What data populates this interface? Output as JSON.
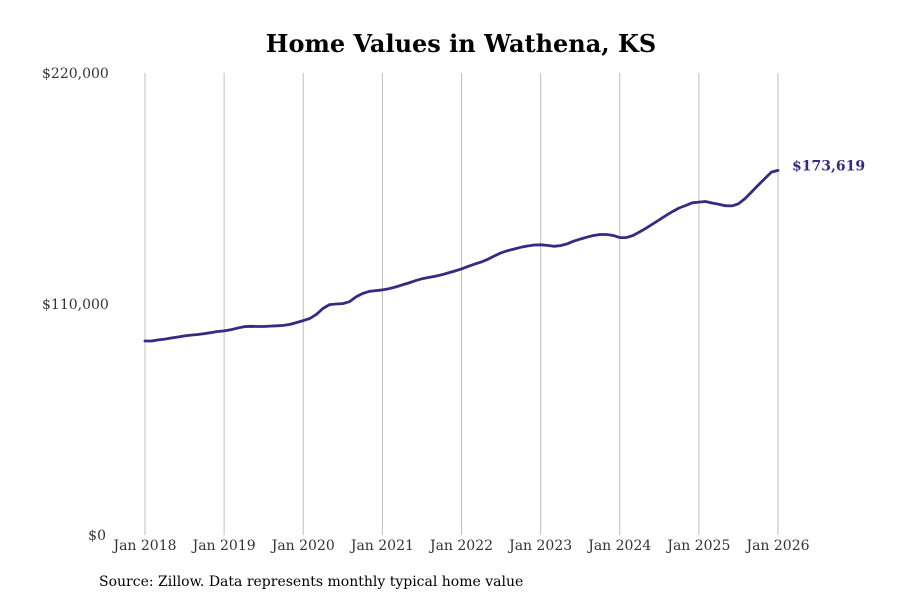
{
  "chart_data": {
    "type": "line",
    "title": "Home Values in Wathena, KS",
    "xlabel": "",
    "ylabel": "",
    "ylim": [
      0,
      220000
    ],
    "y_ticks": [
      0,
      110000,
      220000
    ],
    "y_tick_labels": [
      "$0",
      "$110,000",
      "$220,000"
    ],
    "x_tick_labels": [
      "Jan 2018",
      "Jan 2019",
      "Jan 2020",
      "Jan 2021",
      "Jan 2022",
      "Jan 2023",
      "Jan 2024",
      "Jan 2025",
      "Jan 2026"
    ],
    "xlim": [
      2018.0,
      2026.0
    ],
    "grid": "vertical",
    "series": [
      {
        "name": "Typical home value",
        "color": "#352b82",
        "x": [
          2018.0,
          2018.083,
          2018.167,
          2018.25,
          2018.333,
          2018.417,
          2018.5,
          2018.583,
          2018.667,
          2018.75,
          2018.833,
          2018.917,
          2019.0,
          2019.083,
          2019.167,
          2019.25,
          2019.333,
          2019.417,
          2019.5,
          2019.583,
          2019.667,
          2019.75,
          2019.833,
          2019.917,
          2020.0,
          2020.083,
          2020.167,
          2020.25,
          2020.333,
          2020.417,
          2020.5,
          2020.583,
          2020.667,
          2020.75,
          2020.833,
          2020.917,
          2021.0,
          2021.083,
          2021.167,
          2021.25,
          2021.333,
          2021.417,
          2021.5,
          2021.583,
          2021.667,
          2021.75,
          2021.833,
          2021.917,
          2022.0,
          2022.083,
          2022.167,
          2022.25,
          2022.333,
          2022.417,
          2022.5,
          2022.583,
          2022.667,
          2022.75,
          2022.833,
          2022.917,
          2023.0,
          2023.083,
          2023.167,
          2023.25,
          2023.333,
          2023.417,
          2023.5,
          2023.583,
          2023.667,
          2023.75,
          2023.833,
          2023.917,
          2024.0,
          2024.083,
          2024.167,
          2024.25,
          2024.333,
          2024.417,
          2024.5,
          2024.583,
          2024.667,
          2024.75,
          2024.833,
          2024.917,
          2025.0,
          2025.083,
          2025.167,
          2025.25,
          2025.333,
          2025.417,
          2025.5,
          2025.583,
          2025.667,
          2025.75,
          2025.833,
          2025.917,
          2026.0
        ],
        "values": [
          92400,
          92400,
          92900,
          93300,
          93800,
          94300,
          94800,
          95200,
          95500,
          95900,
          96400,
          96900,
          97200,
          97700,
          98500,
          99200,
          99400,
          99300,
          99300,
          99500,
          99600,
          99800,
          100300,
          101200,
          102100,
          103100,
          105100,
          107900,
          109700,
          110000,
          110200,
          111100,
          113400,
          115000,
          116000,
          116400,
          116700,
          117300,
          118100,
          119100,
          120000,
          121100,
          122000,
          122600,
          123200,
          123900,
          124800,
          125700,
          126700,
          127900,
          129000,
          130000,
          131300,
          132900,
          134400,
          135400,
          136200,
          137000,
          137600,
          138100,
          138200,
          137900,
          137500,
          137800,
          138600,
          139900,
          140900,
          141800,
          142600,
          143100,
          143100,
          142600,
          141600,
          141600,
          142600,
          144300,
          146100,
          148100,
          150100,
          152100,
          154000,
          155700,
          156900,
          158200,
          158500,
          158800,
          158100,
          157500,
          156800,
          156700,
          157700,
          160200,
          163400,
          166600,
          169700,
          172800,
          173619
        ]
      }
    ],
    "annotations": [
      {
        "text": "$173,619",
        "x": 2026.0,
        "y": 173619
      }
    ]
  },
  "source_text": "Source: Zillow. Data represents monthly typical home value"
}
